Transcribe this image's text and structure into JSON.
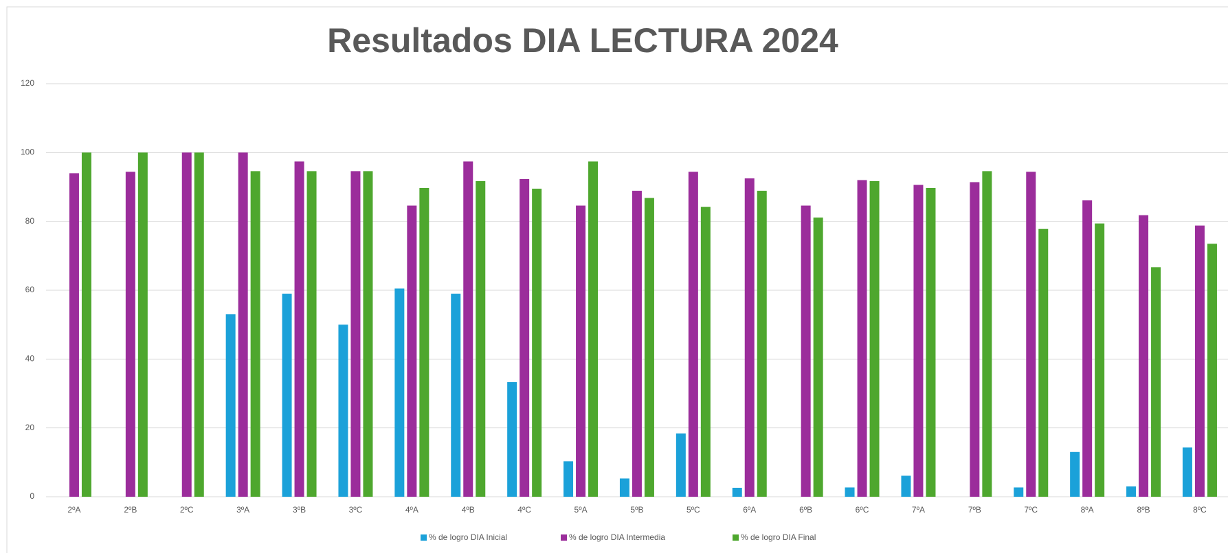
{
  "chart_data": {
    "type": "bar",
    "title": "Resultados DIA LECTURA 2024",
    "categories": [
      "2ºA",
      "2ºB",
      "2ºC",
      "3ºA",
      "3ºB",
      "3ºC",
      "4ºA",
      "4ºB",
      "4ºC",
      "5ºA",
      "5ºB",
      "5ºC",
      "6ºA",
      "6ºB",
      "6ºC",
      "7ºA",
      "7ºB",
      "7ºC",
      "8ºA",
      "8ºB",
      "8ºC"
    ],
    "series": [
      {
        "name": "% de logro DIA Inicial",
        "color": "#1ba1d9",
        "values": [
          0,
          0,
          0,
          53,
          59,
          50,
          60.5,
          59,
          33.3,
          10.3,
          5.3,
          18.4,
          2.6,
          0,
          2.7,
          6.1,
          0,
          2.7,
          13,
          3,
          14.3
        ]
      },
      {
        "name": "% de logro DIA Intermedia",
        "color": "#9b2d9b",
        "values": [
          94,
          94.4,
          100,
          100,
          97.4,
          94.6,
          84.6,
          97.4,
          92.3,
          84.6,
          88.9,
          94.4,
          92.5,
          84.6,
          92,
          90.6,
          91.4,
          94.4,
          86.1,
          81.8,
          78.8
        ]
      },
      {
        "name": "% de logro DIA Final",
        "color": "#4ea72e",
        "values": [
          100,
          100,
          100,
          94.6,
          94.6,
          94.6,
          89.7,
          91.7,
          89.5,
          97.4,
          86.8,
          84.2,
          88.9,
          81.1,
          91.7,
          89.7,
          94.6,
          77.8,
          79.4,
          66.7,
          73.5
        ]
      }
    ],
    "ylim": [
      0,
      120
    ],
    "yticks": [
      0,
      20,
      40,
      60,
      80,
      100,
      120
    ],
    "grid": true,
    "legend": "bottom"
  }
}
